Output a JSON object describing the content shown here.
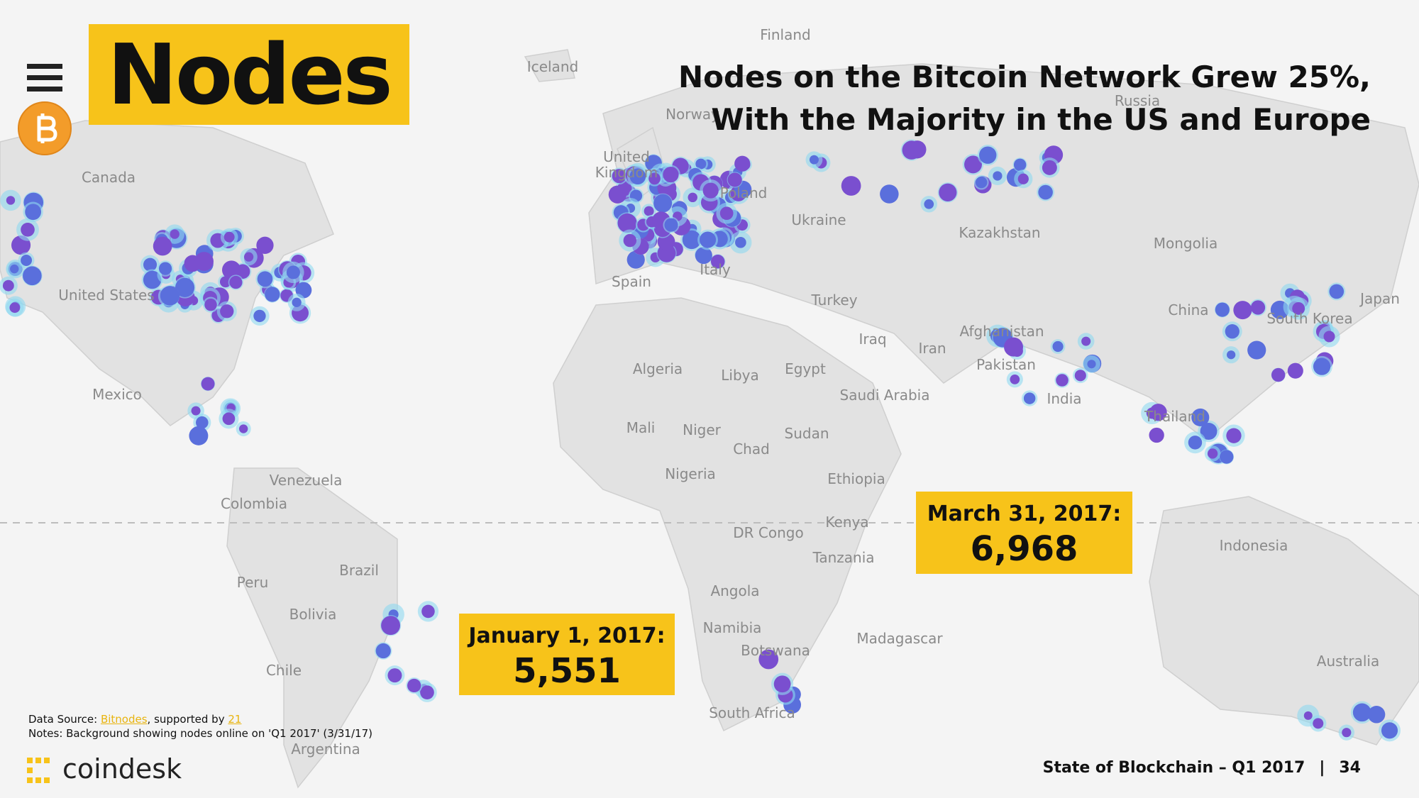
{
  "header": {
    "title": "Nodes",
    "headline": [
      "Nodes on the Bitcoin Network Grew 25%,",
      "With the Majority in the US and Europe"
    ]
  },
  "map": {
    "labels": [
      "Finland",
      "Iceland",
      "Russia",
      "Norway",
      "United Kingdom",
      "Canada",
      "Poland",
      "Ukraine",
      "Kazakhstan",
      "Mongolia",
      "United States",
      "Spain",
      "Italy",
      "Turkey",
      "Japan",
      "China",
      "South Korea",
      "Afghanistan",
      "Iraq",
      "Iran",
      "Algeria",
      "Libya",
      "Egypt",
      "Pakistan",
      "Saudi Arabia",
      "India",
      "Mexico",
      "Mali",
      "Niger",
      "Sudan",
      "Thailand",
      "Chad",
      "Venezuela",
      "Nigeria",
      "Ethiopia",
      "Colombia",
      "Kenya",
      "DR Congo",
      "Indonesia",
      "Tanzania",
      "Peru",
      "Brazil",
      "Angola",
      "Bolivia",
      "Namibia",
      "Madagascar",
      "Botswana",
      "Australia",
      "Chile",
      "South Africa",
      "Argentina"
    ]
  },
  "callouts": [
    {
      "label": "January 1, 2017:",
      "value": "5,551"
    },
    {
      "label": "March 31, 2017:",
      "value": "6,968"
    }
  ],
  "footer": {
    "source": {
      "prefix": "Data Source:",
      "link1": "Bitnodes",
      "middle": ", supported by",
      "link2": "21"
    },
    "notes": "Notes: Background showing nodes online on 'Q1 2017' (3/31/17)",
    "brand": "coindesk",
    "report": "State of Blockchain – Q1 2017",
    "separator": "|",
    "page": "34"
  }
}
